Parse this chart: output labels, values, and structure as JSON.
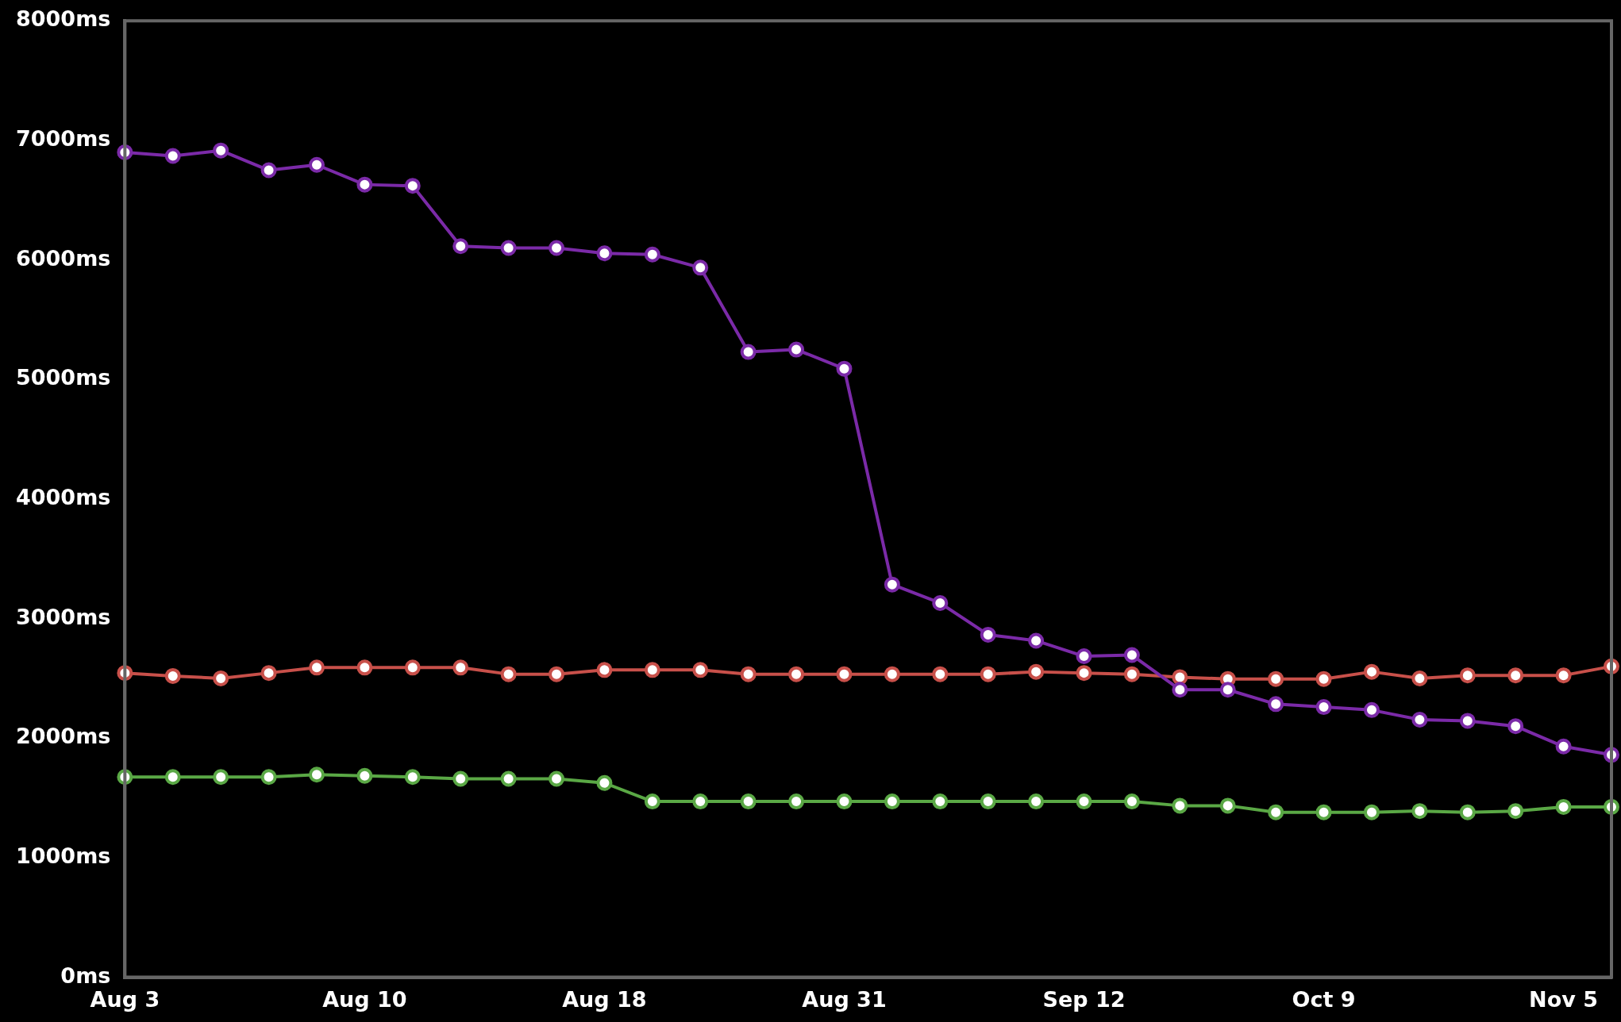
{
  "chart_data": {
    "type": "line",
    "categories": [
      "Aug 3",
      null,
      null,
      null,
      null,
      "Aug 10",
      null,
      null,
      null,
      null,
      "Aug 18",
      null,
      null,
      null,
      null,
      "Aug 31",
      null,
      null,
      null,
      null,
      "Sep 12",
      null,
      null,
      null,
      null,
      "Oct 9",
      null,
      null,
      null,
      null,
      "Nov 5",
      null
    ],
    "series": [
      {
        "color": "#7b2aa8",
        "values": [
          6900,
          6870,
          6915,
          6750,
          6795,
          6630,
          6620,
          6115,
          6100,
          6100,
          6055,
          6045,
          5935,
          5230,
          5250,
          5090,
          3285,
          3130,
          2865,
          2815,
          2685,
          2695,
          2405,
          2405,
          2285,
          2260,
          2235,
          2155,
          2145,
          2100,
          1930,
          1860
        ]
      },
      {
        "color": "#c8504a",
        "values": [
          2545,
          2520,
          2500,
          2545,
          2590,
          2590,
          2590,
          2590,
          2535,
          2535,
          2570,
          2570,
          2570,
          2535,
          2535,
          2535,
          2535,
          2535,
          2535,
          2555,
          2545,
          2535,
          2510,
          2495,
          2495,
          2495,
          2555,
          2500,
          2525,
          2525,
          2525,
          2600
        ]
      },
      {
        "color": "#5aa845",
        "values": [
          1675,
          1675,
          1675,
          1675,
          1695,
          1685,
          1675,
          1660,
          1660,
          1660,
          1625,
          1470,
          1470,
          1470,
          1470,
          1470,
          1470,
          1470,
          1470,
          1470,
          1470,
          1470,
          1435,
          1435,
          1380,
          1380,
          1380,
          1390,
          1380,
          1390,
          1425,
          1425
        ]
      }
    ],
    "ylim": [
      0,
      8000
    ],
    "yticks": [
      {
        "value": 0,
        "label": "0ms"
      },
      {
        "value": 1000,
        "label": "1000ms"
      },
      {
        "value": 2000,
        "label": "2000ms"
      },
      {
        "value": 3000,
        "label": "3000ms"
      },
      {
        "value": 4000,
        "label": "4000ms"
      },
      {
        "value": 5000,
        "label": "5000ms"
      },
      {
        "value": 6000,
        "label": "6000ms"
      },
      {
        "value": 7000,
        "label": "7000ms"
      },
      {
        "value": 8000,
        "label": "8000ms"
      }
    ],
    "grid": false,
    "legend": false,
    "marker": "circle",
    "line_style": "solid"
  }
}
